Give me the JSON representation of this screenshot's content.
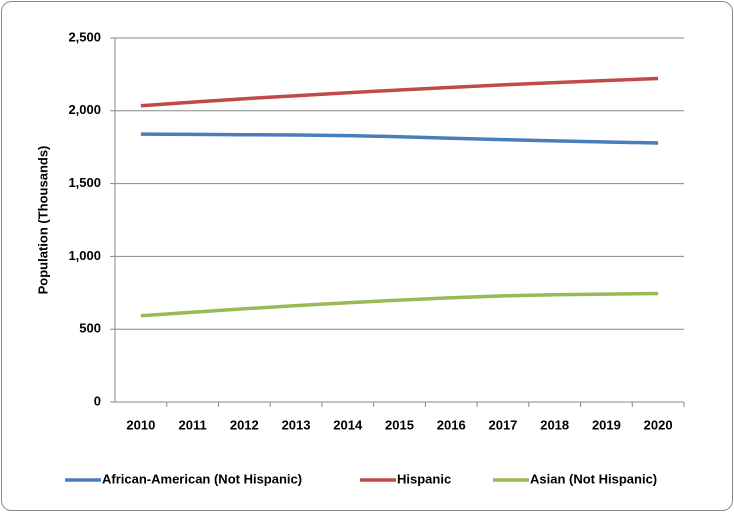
{
  "chart_data": {
    "type": "line",
    "y_label": "Population (Thousands)",
    "categories": [
      "2010",
      "2011",
      "2012",
      "2013",
      "2014",
      "2015",
      "2016",
      "2017",
      "2018",
      "2019",
      "2020"
    ],
    "series": [
      {
        "name": "African-American (Not Hispanic)",
        "color": "#4a7ebb",
        "values": [
          1840,
          1838,
          1836,
          1834,
          1830,
          1822,
          1812,
          1802,
          1793,
          1786,
          1779
        ]
      },
      {
        "name": "Hispanic",
        "color": "#be4b48",
        "values": [
          2035,
          2060,
          2083,
          2104,
          2124,
          2143,
          2161,
          2178,
          2194,
          2208,
          2222
        ]
      },
      {
        "name": "Asian (Not Hispanic)",
        "color": "#98b954",
        "values": [
          593,
          617,
          640,
          662,
          682,
          700,
          716,
          729,
          736,
          741,
          745
        ]
      }
    ],
    "ylim": [
      0,
      2500
    ],
    "yticks": [
      0,
      500,
      {
        "value": 1000,
        "label": "1,000"
      },
      {
        "value": 1500,
        "label": "1,500"
      },
      {
        "value": 2000,
        "label": "2,000"
      },
      {
        "value": 2500,
        "label": "2,500"
      }
    ],
    "grid": true,
    "legend": "bottom"
  }
}
